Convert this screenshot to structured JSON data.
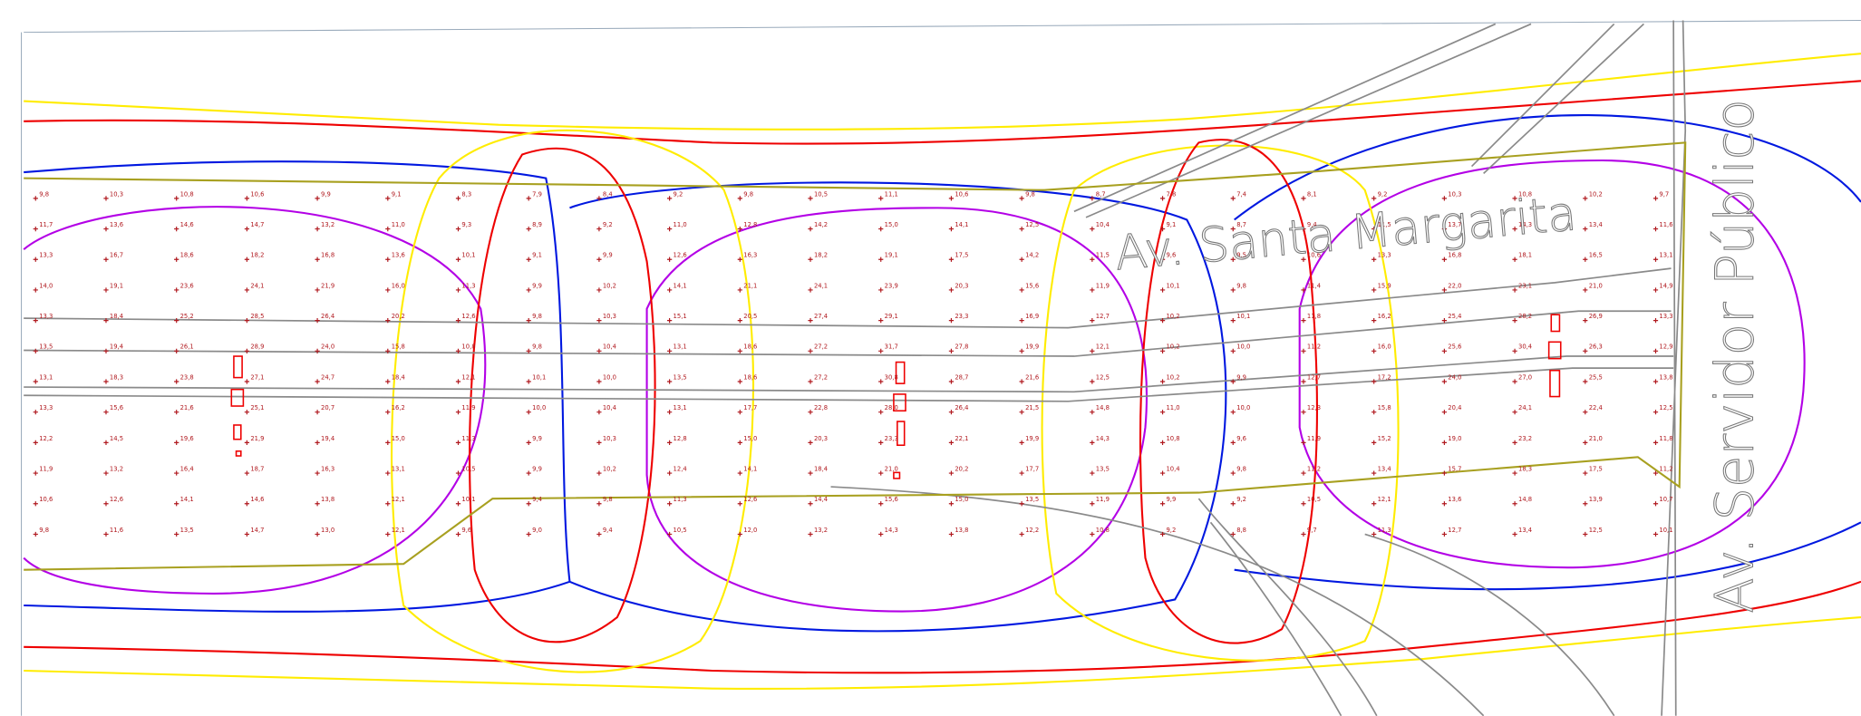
{
  "streets": [
    "Av. Santa Margarita",
    "Av. Servidor Público"
  ],
  "illuminance_grid": {
    "rows": [
      [
        "9,8",
        "10,3",
        "10,8",
        "10,6",
        "9,9",
        "9,1",
        "8,3",
        "7,9",
        "8,4",
        "9,2",
        "9,8",
        "10,5",
        "11,1",
        "10,6",
        "9,8",
        "8,7",
        "7,8",
        "7,4",
        "8,1",
        "9,2",
        "10,3",
        "10,8",
        "10,2",
        "9,7"
      ],
      [
        "11,7",
        "13,6",
        "14,6",
        "14,7",
        "13,2",
        "11,0",
        "9,3",
        "8,9",
        "9,2",
        "11,0",
        "12,8",
        "14,2",
        "15,0",
        "14,1",
        "12,5",
        "10,4",
        "9,1",
        "8,7",
        "9,4",
        "11,5",
        "13,7",
        "14,3",
        "13,4",
        "11,6"
      ],
      [
        "13,3",
        "16,7",
        "18,6",
        "18,2",
        "16,8",
        "13,6",
        "10,1",
        "9,1",
        "9,9",
        "12,6",
        "16,3",
        "18,2",
        "19,1",
        "17,5",
        "14,2",
        "11,5",
        "9,6",
        "9,5",
        "10,6",
        "13,3",
        "16,8",
        "18,1",
        "16,5",
        "13,1"
      ],
      [
        "14,0",
        "19,1",
        "23,6",
        "24,1",
        "21,9",
        "16,0",
        "11,3",
        "9,9",
        "10,2",
        "14,1",
        "21,1",
        "24,1",
        "23,9",
        "20,3",
        "15,6",
        "11,9",
        "10,1",
        "9,8",
        "11,4",
        "15,9",
        "22,0",
        "23,1",
        "21,0",
        "14,9"
      ],
      [
        "13,3",
        "18,4",
        "25,2",
        "28,5",
        "26,4",
        "20,2",
        "12,6",
        "9,8",
        "10,3",
        "15,1",
        "20,5",
        "27,4",
        "29,1",
        "23,3",
        "16,9",
        "12,7",
        "10,2",
        "10,1",
        "11,8",
        "16,2",
        "25,4",
        "28,2",
        "26,9",
        "13,3"
      ],
      [
        "13,5",
        "19,4",
        "26,1",
        "28,9",
        "24,0",
        "15,8",
        "10,8",
        "9,8",
        "10,4",
        "13,1",
        "18,6",
        "27,2",
        "31,7",
        "27,8",
        "19,9",
        "12,1",
        "10,2",
        "10,0",
        "11,2",
        "16,0",
        "25,6",
        "30,4",
        "26,3",
        "12,9"
      ],
      [
        "13,1",
        "18,3",
        "23,8",
        "27,1",
        "24,7",
        "18,4",
        "12,1",
        "10,1",
        "10,0",
        "13,5",
        "18,6",
        "27,2",
        "30,8",
        "28,7",
        "21,6",
        "12,5",
        "10,2",
        "9,9",
        "12,7",
        "17,2",
        "24,0",
        "27,0",
        "25,5",
        "13,8"
      ],
      [
        "13,3",
        "15,6",
        "21,6",
        "25,1",
        "20,7",
        "16,2",
        "11,9",
        "10,0",
        "10,4",
        "13,1",
        "17,7",
        "22,8",
        "28,0",
        "26,4",
        "21,5",
        "14,8",
        "11,0",
        "10,0",
        "12,3",
        "15,8",
        "20,4",
        "24,1",
        "22,4",
        "12,5"
      ],
      [
        "12,2",
        "14,5",
        "19,6",
        "21,9",
        "19,4",
        "15,0",
        "11,3",
        "9,9",
        "10,3",
        "12,8",
        "15,0",
        "20,3",
        "23,3",
        "22,1",
        "19,9",
        "14,3",
        "10,8",
        "9,6",
        "11,9",
        "15,2",
        "19,0",
        "23,2",
        "21,0",
        "11,8"
      ],
      [
        "11,9",
        "13,2",
        "16,4",
        "18,7",
        "16,3",
        "13,1",
        "10,5",
        "9,9",
        "10,2",
        "12,4",
        "14,1",
        "18,4",
        "21,0",
        "20,2",
        "17,7",
        "13,5",
        "10,4",
        "9,8",
        "11,2",
        "13,4",
        "15,7",
        "18,3",
        "17,5",
        "11,2"
      ],
      [
        "10,6",
        "12,6",
        "14,1",
        "14,6",
        "13,8",
        "12,1",
        "10,1",
        "9,4",
        "9,8",
        "11,3",
        "12,6",
        "14,4",
        "15,6",
        "15,0",
        "13,5",
        "11,9",
        "9,9",
        "9,2",
        "10,5",
        "12,1",
        "13,6",
        "14,8",
        "13,9",
        "10,7"
      ],
      [
        "9,8",
        "11,6",
        "13,5",
        "14,7",
        "13,0",
        "12,1",
        "9,6",
        "9,0",
        "9,4",
        "10,5",
        "12,0",
        "13,2",
        "14,3",
        "13,8",
        "12,2",
        "10,8",
        "9,2",
        "8,8",
        "9,7",
        "11,3",
        "12,7",
        "13,4",
        "12,5",
        "10,1"
      ]
    ]
  }
}
